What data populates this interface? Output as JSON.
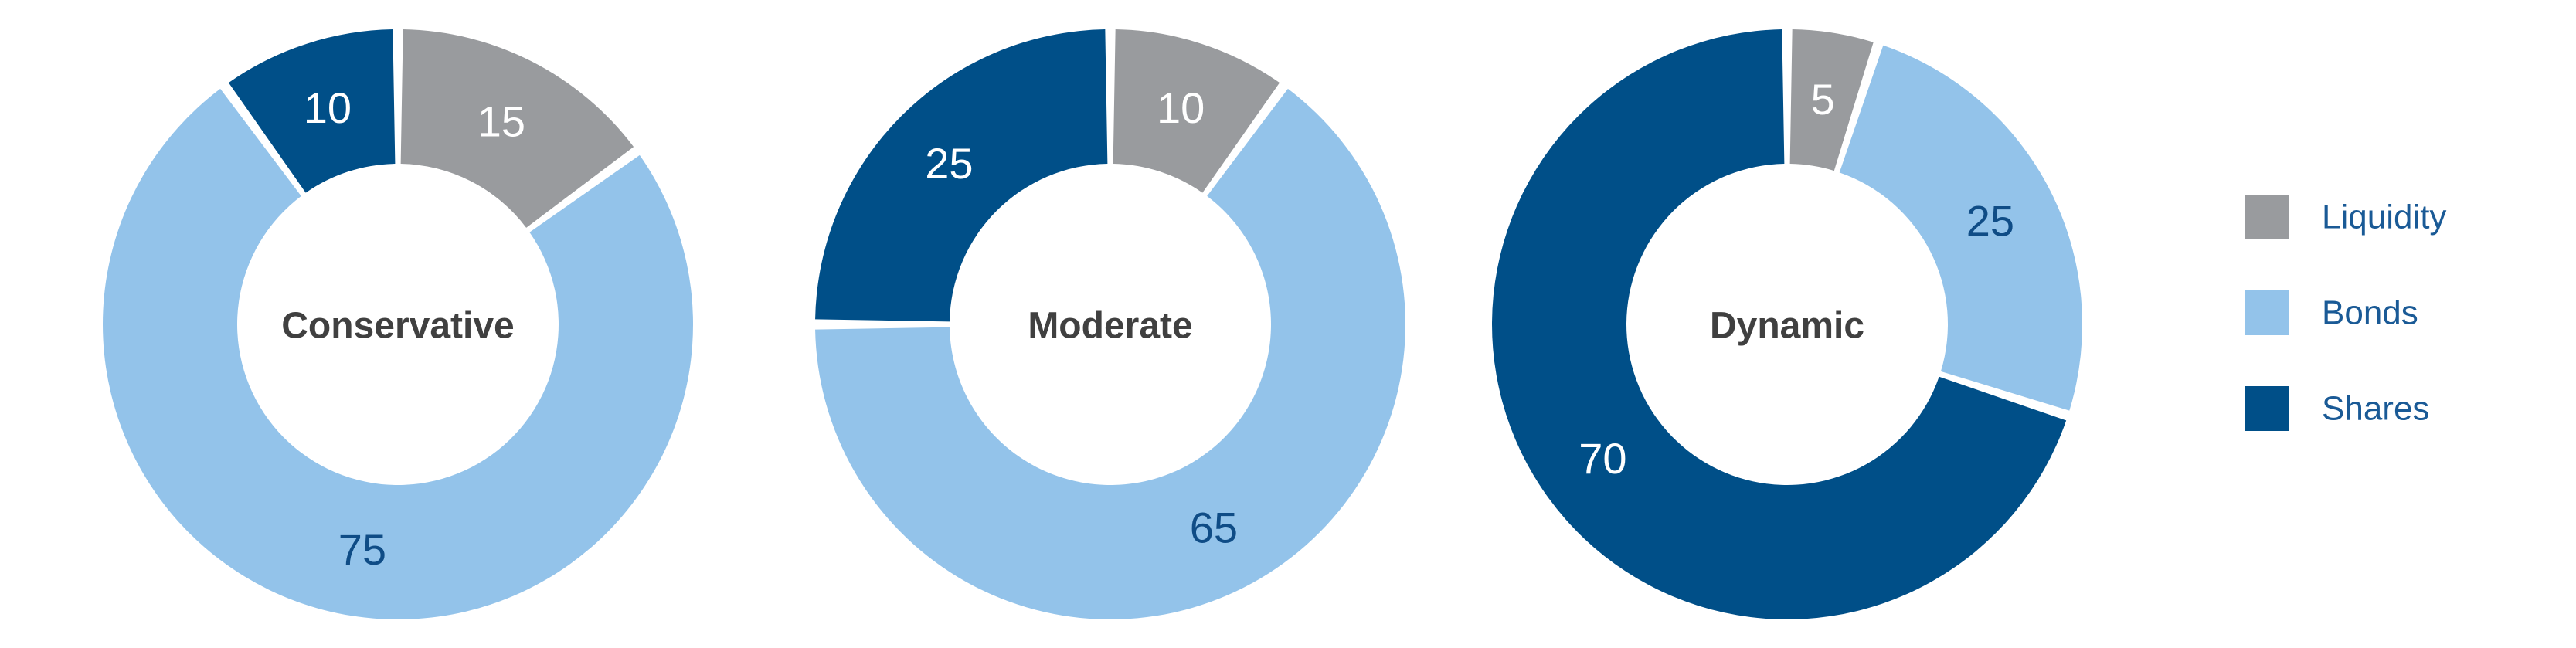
{
  "chart_data": {
    "type": "pie",
    "style": "donut",
    "legend": {
      "placement": "right",
      "entries": [
        "Liquidity",
        "Bonds",
        "Shares"
      ]
    },
    "colors": {
      "Liquidity": "#999b9e",
      "Bonds": "#93c3ea",
      "Shares": "#004f88"
    },
    "label_colors": {
      "Liquidity": "#ffffff",
      "Bonds": "#0f4c86",
      "Shares": "#ffffff"
    },
    "charts": [
      {
        "title": "Conservative",
        "slices": [
          {
            "name": "Liquidity",
            "value": 15
          },
          {
            "name": "Bonds",
            "value": 75
          },
          {
            "name": "Shares",
            "value": 10
          }
        ]
      },
      {
        "title": "Moderate",
        "slices": [
          {
            "name": "Liquidity",
            "value": 10
          },
          {
            "name": "Bonds",
            "value": 65
          },
          {
            "name": "Shares",
            "value": 25
          }
        ]
      },
      {
        "title": "Dynamic",
        "slices": [
          {
            "name": "Liquidity",
            "value": 5
          },
          {
            "name": "Bonds",
            "value": 25
          },
          {
            "name": "Shares",
            "value": 70
          }
        ]
      }
    ]
  }
}
